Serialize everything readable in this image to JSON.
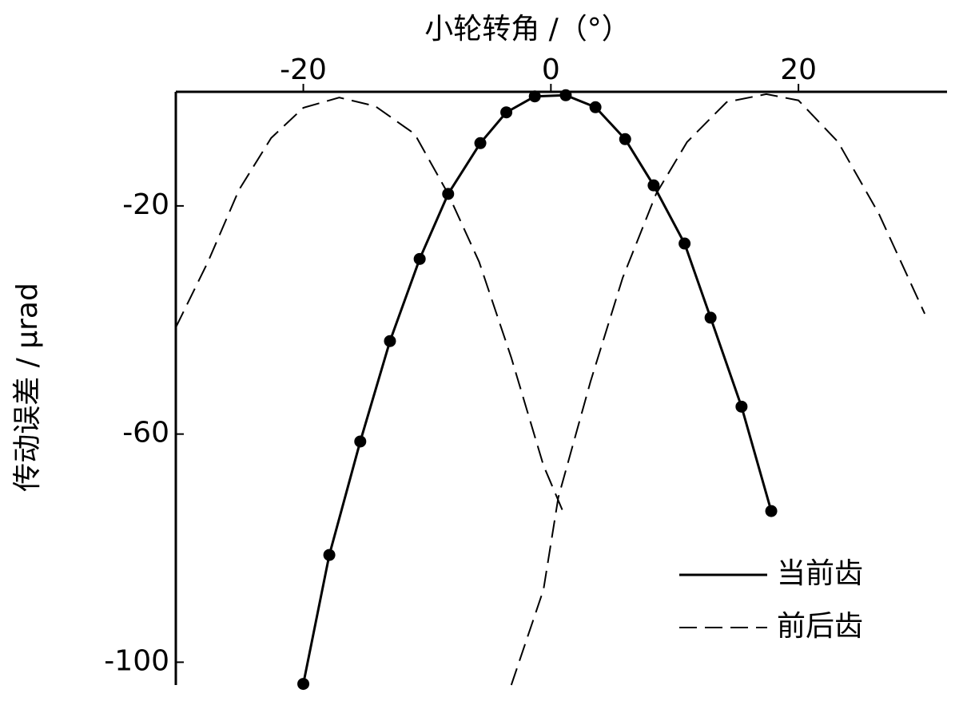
{
  "chart_data": {
    "type": "line",
    "xlabel": "小轮转角 /（°）",
    "ylabel": "传动误差 / μrad",
    "xlim": [
      -30.3,
      32
    ],
    "ylim": [
      -104,
      0
    ],
    "xticks": [
      -20,
      0,
      20
    ],
    "yticks": [
      -20,
      -60,
      -100
    ],
    "legend": "lower right",
    "series": [
      {
        "name": "当前齿",
        "color": "#000000",
        "dash": false,
        "markers": true,
        "x": [
          -20,
          -17.9,
          -15.4,
          -13.0,
          -10.6,
          -8.3,
          -5.7,
          -3.6,
          -1.3,
          1.2,
          3.6,
          6.0,
          8.3,
          10.8,
          12.9,
          15.4,
          17.8
        ],
        "values": [
          -103.8,
          -81.2,
          -61.3,
          -43.7,
          -29.3,
          -17.9,
          -9.0,
          -3.6,
          -0.8,
          -0.6,
          -2.7,
          -8.3,
          -16.4,
          -26.6,
          -39.6,
          -55.2,
          -73.5
        ]
      },
      {
        "name": "前后齿",
        "color": "#000000",
        "dash": true,
        "markers": false,
        "x": [
          -30.3,
          -27.7,
          -25.2,
          -22.6,
          -20,
          -17.1,
          -14.2,
          -11,
          -8.3,
          -5.8,
          -3.2,
          -0.6,
          1,
          null,
          -3.2,
          -0.6,
          0.6,
          3.2,
          5.8,
          8.5,
          11,
          14.2,
          17.4,
          20,
          23.2,
          26.5,
          30.2
        ],
        "values": [
          -41.3,
          -29.8,
          -17.2,
          -8.1,
          -2.8,
          -1.0,
          -2.5,
          -7.4,
          -17.9,
          -29.8,
          -46.6,
          -65.5,
          -73.7,
          null,
          -104,
          -87.3,
          -71.1,
          -50.8,
          -32.6,
          -17.9,
          -8.8,
          -1.8,
          -0.4,
          -1.5,
          -8.8,
          -21.4,
          -38.9
        ]
      }
    ]
  }
}
